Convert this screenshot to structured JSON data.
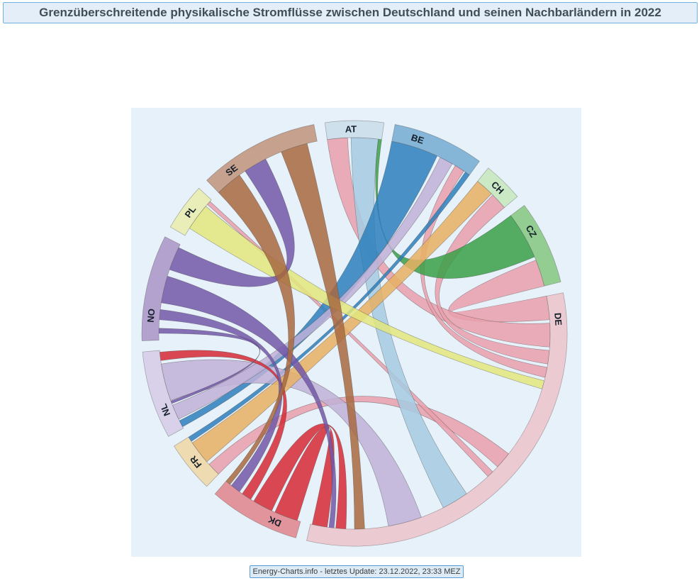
{
  "title": {
    "text": "Grenzüberschreitende physikalische Stromflüsse zwischen Deutschland und seinen Nachbarländern in 2022"
  },
  "footer": {
    "text": "Energy-Charts.info - letztes Update: 23.12.2022, 23:33 MEZ"
  },
  "colors": {
    "page_bg": "#ffffff",
    "chart_bg": "#e7f1f9",
    "title_bg": "#e3eef8",
    "title_border": "#70b0de",
    "footer_bg": "#ddebf7",
    "footer_border": "#5b9bd5"
  },
  "chart_data": {
    "type": "chord",
    "title": "Grenzüberschreitende physikalische Stromflüsse zwischen Deutschland und seinen Nachbarländern in 2022",
    "source_note": "Energy-Charts.info - letztes Update: 23.12.2022, 23:33 MEZ",
    "legend_position": "none",
    "grid": false,
    "countries": [
      {
        "code": "AT",
        "label": "AT",
        "start": -8,
        "end": 8,
        "band_color": "#cfe0ed",
        "flow_color": "#a6cbe2"
      },
      {
        "code": "BE",
        "label": "BE",
        "start": 11,
        "end": 36,
        "band_color": "#85b5d7",
        "flow_color": "#2c7fbc"
      },
      {
        "code": "CH",
        "label": "CH",
        "start": 39,
        "end": 50,
        "band_color": "#cce9c6",
        "flow_color": "#7fc97f"
      },
      {
        "code": "CZ",
        "label": "CZ",
        "start": 53,
        "end": 76,
        "band_color": "#93cd92",
        "flow_color": "#38a047"
      },
      {
        "code": "DE",
        "label": "DE",
        "start": 79,
        "end": 193,
        "band_color": "#eccad2",
        "flow_color": "#e79fab"
      },
      {
        "code": "DK",
        "label": "DK",
        "start": 196,
        "end": 221,
        "band_color": "#e2949c",
        "flow_color": "#d62a35"
      },
      {
        "code": "FR",
        "label": "FR",
        "start": 224,
        "end": 238,
        "band_color": "#eedbb2",
        "flow_color": "#e7b064"
      },
      {
        "code": "NL",
        "label": "NL",
        "start": 241,
        "end": 265,
        "band_color": "#d8d1e9",
        "flow_color": "#c0b1d8"
      },
      {
        "code": "NO",
        "label": "NO",
        "start": 268,
        "end": 297,
        "band_color": "#b3a2ce",
        "flow_color": "#7257a8"
      },
      {
        "code": "PL",
        "label": "PL",
        "start": 300,
        "end": 313,
        "band_color": "#e9edb8",
        "flow_color": "#e3e87e"
      },
      {
        "code": "SE",
        "label": "SE",
        "start": 316,
        "end": 349,
        "band_color": "#c6a18e",
        "flow_color": "#a8693f"
      }
    ],
    "flows": [
      {
        "from": "DE",
        "to": "CZ",
        "from_start": 79,
        "from_end": 86,
        "to_start": 68,
        "to_end": 76
      },
      {
        "from": "DE",
        "to": "AT",
        "from_start": 87,
        "from_end": 94,
        "to_start": -8,
        "to_end": -2
      },
      {
        "from": "DE",
        "to": "CH",
        "from_start": 95,
        "from_end": 99,
        "to_start": 45,
        "to_end": 50
      },
      {
        "from": "DE",
        "to": "BE",
        "from_start": 100,
        "from_end": 103,
        "to_start": 31,
        "to_end": 34
      },
      {
        "from": "DE",
        "to": "FR",
        "from_start": 128,
        "from_end": 133,
        "to_start": 224,
        "to_end": 228
      },
      {
        "from": "DE",
        "to": "PL",
        "from_start": 135,
        "from_end": 137,
        "to_start": 311.2,
        "to_end": 312.4
      },
      {
        "from": "AT",
        "to": "DE",
        "from_start": -1,
        "from_end": 7,
        "to_start": 145,
        "to_end": 153
      },
      {
        "from": "CZ",
        "to": "AT",
        "from_start": 53,
        "from_end": 67,
        "to_start": 7,
        "to_end": 8
      },
      {
        "from": "BE",
        "to": "NL",
        "from_start": 11,
        "from_end": 25,
        "to_start": 241.5,
        "to_end": 243.5
      },
      {
        "from": "BE",
        "to": "FR",
        "from_start": 34.5,
        "from_end": 36,
        "to_start": 236.5,
        "to_end": 238
      },
      {
        "from": "NL",
        "to": "DE",
        "from_start": 250,
        "from_end": 261,
        "to_start": 160,
        "to_end": 170
      },
      {
        "from": "NL",
        "to": "BE",
        "from_start": 244,
        "from_end": 248.5,
        "to_start": 26,
        "to_end": 30
      },
      {
        "from": "FR",
        "to": "CH",
        "from_start": 229,
        "from_end": 236,
        "to_start": 39,
        "to_end": 44.5
      },
      {
        "from": "PL",
        "to": "DE",
        "from_start": 302.5,
        "from_end": 310.5,
        "to_start": 104,
        "to_end": 106.5
      },
      {
        "from": "DK",
        "to": "DE",
        "from_start": 197,
        "from_end": 204,
        "to_start": 188,
        "to_end": 192.5
      },
      {
        "from": "DK",
        "to": "DE",
        "from_start": 205,
        "from_end": 211,
        "to_start": 182.5,
        "to_end": 185.5
      },
      {
        "from": "DK",
        "to": "NL",
        "from_start": 212,
        "from_end": 215,
        "to_start": 262,
        "to_end": 264.5
      },
      {
        "from": "NO",
        "to": "SE",
        "from_start": 289,
        "from_end": 296,
        "to_start": 326,
        "to_end": 333
      },
      {
        "from": "NO",
        "to": "DE",
        "from_start": 279,
        "from_end": 287,
        "to_start": 186,
        "to_end": 187.5
      },
      {
        "from": "NO",
        "to": "DK",
        "from_start": 274,
        "from_end": 277,
        "to_start": 216,
        "to_end": 219
      },
      {
        "from": "NO",
        "to": "NL",
        "from_start": 270,
        "from_end": 271.5,
        "to_start": 249,
        "to_end": 249.8
      },
      {
        "from": "SE",
        "to": "DK",
        "from_start": 316,
        "from_end": 324,
        "to_start": 219.5,
        "to_end": 221
      },
      {
        "from": "SE",
        "to": "DE",
        "from_start": 338,
        "from_end": 346,
        "to_start": 177,
        "to_end": 180
      }
    ]
  }
}
